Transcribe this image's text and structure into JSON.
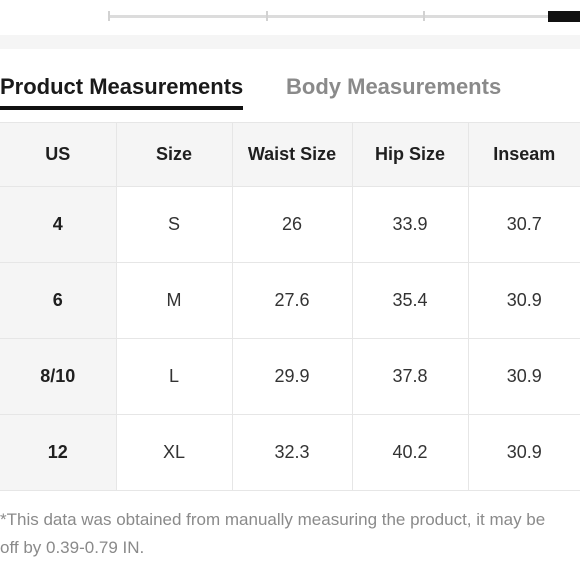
{
  "tabs": {
    "product": "Product Measurements",
    "body": "Body Measurements",
    "active": "product"
  },
  "table": {
    "headers": [
      "US",
      "Size",
      "Waist Size",
      "Hip Size",
      "Inseam"
    ],
    "rows": [
      [
        "4",
        "S",
        "26",
        "33.9",
        "30.7"
      ],
      [
        "6",
        "M",
        "27.6",
        "35.4",
        "30.9"
      ],
      [
        "8/10",
        "L",
        "29.9",
        "37.8",
        "30.9"
      ],
      [
        "12",
        "XL",
        "32.3",
        "40.2",
        "30.9"
      ]
    ]
  },
  "footnote": "*This data was obtained from manually measuring the product, it may be off by 0.39-0.79 IN.",
  "colors": {
    "accent": "#111111",
    "header_bg": "#f5f5f5",
    "muted_text": "#8a8a8a",
    "border": "#e6e6e6"
  }
}
